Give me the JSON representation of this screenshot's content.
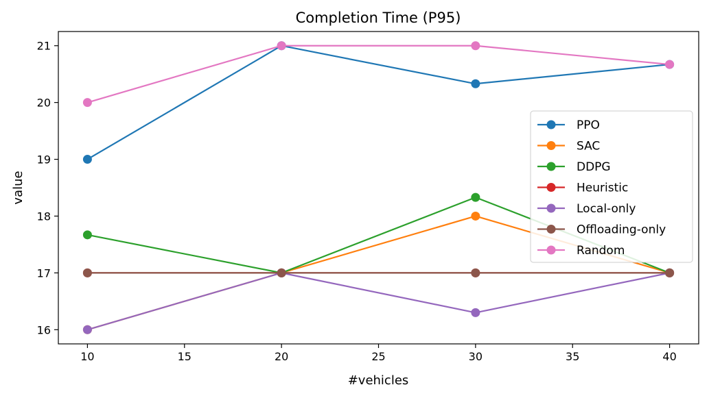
{
  "chart_data": {
    "type": "line",
    "title": "Completion Time (P95)",
    "xlabel": "#vehicles",
    "ylabel": "value",
    "x": [
      10,
      20,
      30,
      40
    ],
    "xlim": [
      8.5,
      41.5
    ],
    "ylim": [
      15.75,
      21.25
    ],
    "xticks": [
      10,
      15,
      20,
      25,
      30,
      35,
      40
    ],
    "yticks": [
      16,
      17,
      18,
      19,
      20,
      21
    ],
    "grid": false,
    "legend_position": "center-right",
    "series": [
      {
        "name": "PPO",
        "color": "#1f77b4",
        "values": [
          19.0,
          21.0,
          20.33,
          20.67
        ]
      },
      {
        "name": "SAC",
        "color": "#ff7f0e",
        "values": [
          16.0,
          17.0,
          18.0,
          17.0
        ]
      },
      {
        "name": "DDPG",
        "color": "#2ca02c",
        "values": [
          17.67,
          17.0,
          18.33,
          17.0
        ]
      },
      {
        "name": "Heuristic",
        "color": "#d62728",
        "values": [
          17.0,
          17.0,
          17.0,
          17.0
        ]
      },
      {
        "name": "Local-only",
        "color": "#9467bd",
        "values": [
          16.0,
          17.0,
          16.3,
          17.0
        ]
      },
      {
        "name": "Offloading-only",
        "color": "#8c564b",
        "values": [
          17.0,
          17.0,
          17.0,
          17.0
        ]
      },
      {
        "name": "Random",
        "color": "#e377c2",
        "values": [
          20.0,
          21.0,
          21.0,
          20.67
        ]
      }
    ]
  }
}
